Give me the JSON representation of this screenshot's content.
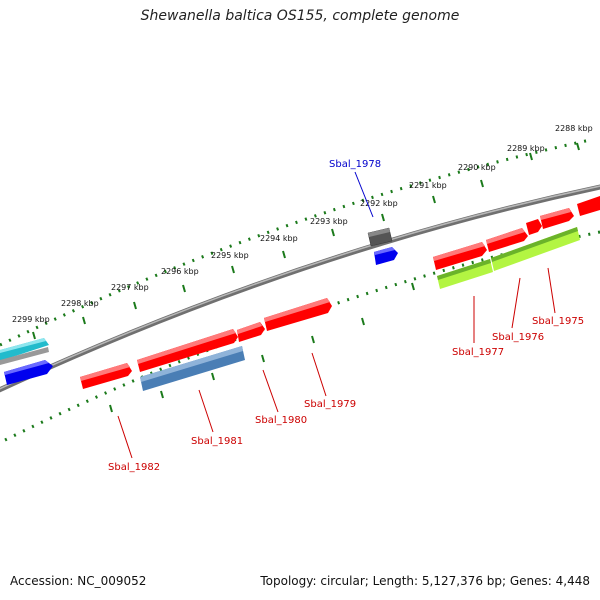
{
  "header": {
    "title": "Shewanella baltica OS155, complete genome"
  },
  "footer": {
    "accession": "Accession: NC_009052",
    "summary": "Topology: circular; Length: 5,127,376 bp; Genes: 4,448"
  },
  "colors": {
    "backbone": "#888888",
    "ticks": "#1b7a1b",
    "red_gene": "#ff0000",
    "blue_gene": "#0000ee",
    "steel_gene": "#4a7eb5",
    "lime_gene": "#b3f542",
    "gray_gene": "#666666",
    "cyan_gene": "#22bbcc",
    "red_label": "#cc0000",
    "blue_label": "#0000cc"
  },
  "kbp_labels": [
    "2288 kbp",
    "2289 kbp",
    "2290 kbp",
    "2291 kbp",
    "2292 kbp",
    "2293 kbp",
    "2294 kbp",
    "2295 kbp",
    "2296 kbp",
    "2297 kbp",
    "2298 kbp",
    "2299 kbp"
  ],
  "gene_labels": {
    "sbal_1975": "Sbal_1975",
    "sbal_1976": "Sbal_1976",
    "sbal_1977": "Sbal_1977",
    "sbal_1978": "Sbal_1978",
    "sbal_1979": "Sbal_1979",
    "sbal_1980": "Sbal_1980",
    "sbal_1981": "Sbal_1981",
    "sbal_1982": "Sbal_1982"
  }
}
